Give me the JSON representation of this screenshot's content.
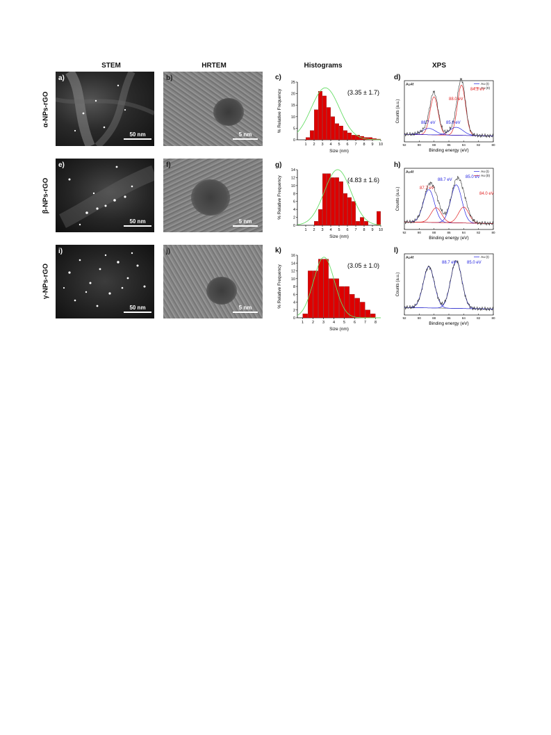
{
  "headers": [
    "STEM",
    "HRTEM",
    "Histograms",
    "XPS"
  ],
  "rows": [
    {
      "label": "α-NPs-rGO",
      "stem": {
        "letter": "a)",
        "scale": "50 nm"
      },
      "hrtem": {
        "letter": "b)",
        "scale": "5 nm"
      },
      "hist": {
        "letter": "c)",
        "note": "(3.35 ± 1.7)"
      },
      "xps": {
        "letter": "d)",
        "title": "Au4f"
      }
    },
    {
      "label": "β-NPs-rGO",
      "stem": {
        "letter": "e)",
        "scale": "50 nm"
      },
      "hrtem": {
        "letter": "f)",
        "scale": "5 nm"
      },
      "hist": {
        "letter": "g)",
        "note": "(4.83 ± 1.6)"
      },
      "xps": {
        "letter": "h)",
        "title": "Au4f"
      }
    },
    {
      "label": "γ-NPs-rGO",
      "stem": {
        "letter": "i)",
        "scale": "50 nm"
      },
      "hrtem": {
        "letter": "j)",
        "scale": "5 nm"
      },
      "hist": {
        "letter": "k)",
        "note": "(3.05 ± 1.0)"
      },
      "xps": {
        "letter": "l)",
        "title": "Au4f"
      }
    }
  ],
  "chart_data": [
    {
      "type": "bar",
      "panel": "c",
      "xlabel": "Size (nm)",
      "ylabel": "% Relative Frequency",
      "xlim": [
        0,
        10
      ],
      "ylim": [
        0,
        25
      ],
      "xticks": [
        1,
        2,
        3,
        4,
        5,
        6,
        7,
        8,
        9,
        10
      ],
      "yticks": [
        0,
        5,
        10,
        15,
        20,
        25
      ],
      "bin_width": 0.5,
      "bins": [
        1.25,
        1.75,
        2.25,
        2.75,
        3.25,
        3.75,
        4.25,
        4.75,
        5.25,
        5.75,
        6.25,
        6.75,
        7.25,
        7.75,
        8.25,
        8.75,
        9.25,
        9.75
      ],
      "values": [
        1,
        4,
        13,
        21,
        19,
        14,
        10,
        7,
        6,
        4,
        3,
        2,
        2,
        1.5,
        1,
        1,
        0.5,
        0.3
      ],
      "fit_mean": 3.35,
      "fit_sd": 1.7,
      "fit_peak": 22.5
    },
    {
      "type": "bar",
      "panel": "g",
      "xlabel": "Size (nm)",
      "ylabel": "% Relative Frequency",
      "xlim": [
        0,
        10
      ],
      "ylim": [
        0,
        14
      ],
      "xticks": [
        1,
        2,
        3,
        4,
        5,
        6,
        7,
        8,
        9,
        10
      ],
      "yticks": [
        0,
        2,
        4,
        6,
        8,
        10,
        12,
        14
      ],
      "bin_width": 0.5,
      "bins": [
        2.25,
        2.75,
        3.25,
        3.75,
        4.25,
        4.75,
        5.25,
        5.75,
        6.25,
        6.75,
        7.25,
        7.75,
        8.25,
        9.75
      ],
      "values": [
        1,
        4,
        13,
        13,
        12,
        12,
        11,
        8,
        7,
        6,
        1,
        2,
        1,
        3.5
      ],
      "fit_mean": 4.83,
      "fit_sd": 1.6,
      "fit_peak": 14
    },
    {
      "type": "bar",
      "panel": "k",
      "xlabel": "Size (nm)",
      "ylabel": "% Relative Frequency",
      "xlim": [
        0.5,
        8.5
      ],
      "ylim": [
        0,
        16
      ],
      "xticks": [
        1,
        2,
        3,
        4,
        5,
        6,
        7,
        8
      ],
      "yticks": [
        0,
        2,
        4,
        6,
        8,
        10,
        12,
        14,
        16
      ],
      "bin_width": 0.5,
      "bins": [
        1.25,
        1.75,
        2.25,
        2.75,
        3.25,
        3.75,
        4.25,
        4.75,
        5.25,
        5.75,
        6.25,
        6.75,
        7.25,
        7.75
      ],
      "values": [
        1,
        12,
        12,
        15,
        15,
        10,
        10,
        8,
        8,
        6,
        5,
        4,
        2,
        1
      ],
      "fit_mean": 3.05,
      "fit_sd": 1.0,
      "fit_peak": 15.5
    },
    {
      "type": "line",
      "panel": "d",
      "xlabel": "Binding energy (eV)",
      "ylabel": "Counts (a.u.)",
      "xlim": [
        92,
        80
      ],
      "xticks": [
        92,
        90,
        88,
        86,
        84,
        82,
        80
      ],
      "legend": [
        "Au (I)",
        "Au (0)"
      ],
      "legend_position": "top-right",
      "peaks": [
        {
          "series": "Au (0)",
          "center": 88.0,
          "amp": 0.72,
          "width": 0.55
        },
        {
          "series": "Au (0)",
          "center": 84.3,
          "amp": 0.95,
          "width": 0.55
        },
        {
          "series": "Au (I)",
          "center": 88.7,
          "amp": 0.12,
          "width": 0.9
        },
        {
          "series": "Au (I)",
          "center": 85.0,
          "amp": 0.15,
          "width": 0.9
        }
      ],
      "annotations": [
        {
          "text": "88.0 eV",
          "color": "#e02020"
        },
        {
          "text": "84.3 eV",
          "color": "#e02020"
        },
        {
          "text": "88.7 eV",
          "color": "#2020e0"
        },
        {
          "text": "85.0 eV",
          "color": "#2020e0"
        }
      ]
    },
    {
      "type": "line",
      "panel": "h",
      "xlabel": "Binding energy (eV)",
      "ylabel": "Counts (a.u.)",
      "xlim": [
        92,
        80
      ],
      "xticks": [
        92,
        90,
        88,
        86,
        84,
        82,
        80
      ],
      "legend": [
        "Au (I)",
        "Au (0)"
      ],
      "legend_position": "top-right",
      "peaks": [
        {
          "series": "Au (I)",
          "center": 88.7,
          "amp": 0.62,
          "width": 0.75
        },
        {
          "series": "Au (I)",
          "center": 85.0,
          "amp": 0.72,
          "width": 0.75
        },
        {
          "series": "Au (0)",
          "center": 87.7,
          "amp": 0.28,
          "width": 0.7
        },
        {
          "series": "Au (0)",
          "center": 84.0,
          "amp": 0.3,
          "width": 0.7
        }
      ],
      "annotations": [
        {
          "text": "87.7 eV",
          "color": "#e02020"
        },
        {
          "text": "88.7 eV",
          "color": "#2020e0"
        },
        {
          "text": "85.0 eV",
          "color": "#2020e0"
        },
        {
          "text": "84.0 eV",
          "color": "#e02020"
        }
      ]
    },
    {
      "type": "line",
      "panel": "l",
      "xlabel": "Binding energy (eV)",
      "ylabel": "Counts (a.u.)",
      "xlim": [
        92,
        80
      ],
      "xticks": [
        92,
        90,
        88,
        86,
        84,
        82,
        80
      ],
      "legend": [
        "Au (I)"
      ],
      "legend_position": "top-right",
      "peaks": [
        {
          "series": "Au (I)",
          "center": 88.7,
          "amp": 0.78,
          "width": 0.75
        },
        {
          "series": "Au (I)",
          "center": 85.0,
          "amp": 0.9,
          "width": 0.75
        }
      ],
      "annotations": [
        {
          "text": "88.7 eV",
          "color": "#2020e0"
        },
        {
          "text": "85.0 eV",
          "color": "#2020e0"
        }
      ]
    }
  ],
  "colors": {
    "bar": "#dd0000",
    "fit": "#66dd66",
    "au0": "#e02020",
    "aui": "#2020e0"
  }
}
